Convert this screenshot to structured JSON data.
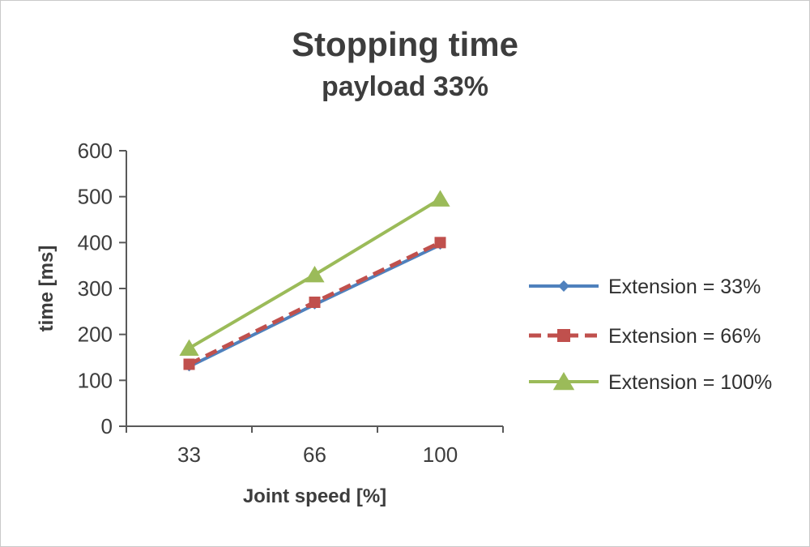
{
  "chart_data": {
    "type": "line",
    "title": "Stopping time",
    "subtitle": "payload 33%",
    "xlabel": "Joint speed [%]",
    "ylabel": "time [ms]",
    "categories": [
      "33",
      "66",
      "100"
    ],
    "series": [
      {
        "name": "Extension = 33%",
        "values": [
          130,
          265,
          395
        ],
        "color": "#4F81BD",
        "marker": "diamond",
        "dash": "solid"
      },
      {
        "name": "Extension = 66%",
        "values": [
          135,
          270,
          400
        ],
        "color": "#C0504D",
        "marker": "square",
        "dash": "dashed"
      },
      {
        "name": "Extension = 100%",
        "values": [
          170,
          330,
          495
        ],
        "color": "#9BBB59",
        "marker": "triangle",
        "dash": "solid"
      }
    ],
    "ylim": [
      0,
      600
    ],
    "ytick_step": 100,
    "grid": false,
    "legend_position": "right",
    "axis_color": "#595959"
  }
}
